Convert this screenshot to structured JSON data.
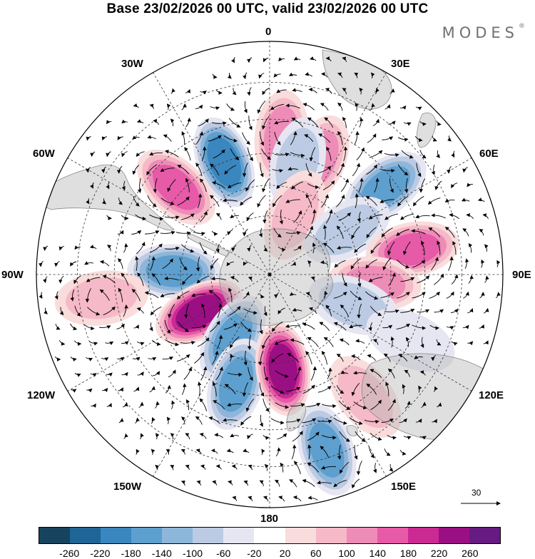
{
  "title": "Base 23/02/2026 00 UTC, valid 23/02/2026 00 UTC",
  "brand": "MODES",
  "brand_mark": "®",
  "longitude_labels": {
    "lon_0": "0",
    "lon_30e": "30E",
    "lon_60e": "60E",
    "lon_90e": "90E",
    "lon_120e": "120E",
    "lon_150e": "150E",
    "lon_180": "180",
    "lon_150w": "150W",
    "lon_120w": "120W",
    "lon_90w": "90W",
    "lon_60w": "60W",
    "lon_30w": "30W"
  },
  "reference_vector": {
    "label": "30"
  },
  "colorbar": {
    "colors": [
      "#17435f",
      "#1f6596",
      "#3a86bf",
      "#5d9fce",
      "#8eb6da",
      "#bccbe3",
      "#e6e6f2",
      "#ffffff",
      "#f9dcdc",
      "#f6b9c7",
      "#ee8cb8",
      "#e65aa8",
      "#cb2a93",
      "#9b0f84",
      "#661b82"
    ],
    "tick_labels": [
      "-260",
      "-220",
      "-180",
      "-140",
      "-100",
      "-60",
      "-20",
      "20",
      "60",
      "100",
      "140",
      "180",
      "220",
      "260"
    ]
  },
  "anomalies": [
    {
      "lon": 23,
      "lat": -49,
      "value": 120
    },
    {
      "lon": 5,
      "lat": -45,
      "value": 130
    },
    {
      "lon": 14,
      "lat": -52,
      "value": -90
    },
    {
      "lon": 23,
      "lat": -68,
      "value": 60
    },
    {
      "lon": -22,
      "lat": -50,
      "value": -200
    },
    {
      "lon": -47,
      "lat": -48,
      "value": 150
    },
    {
      "lon": -88,
      "lat": -58,
      "value": -170
    },
    {
      "lon": -98,
      "lat": -36,
      "value": 60
    },
    {
      "lon": -118,
      "lat": -63,
      "value": 230
    },
    {
      "lon": -150,
      "lat": -65,
      "value": -140
    },
    {
      "lon": -163,
      "lat": -52,
      "value": -170
    },
    {
      "lon": 172,
      "lat": -58,
      "value": 240
    },
    {
      "lon": 162,
      "lat": -32,
      "value": -140
    },
    {
      "lon": 142,
      "lat": -40,
      "value": 70
    },
    {
      "lon": 53,
      "lat": -43,
      "value": -160
    },
    {
      "lon": 60,
      "lat": -60,
      "value": -80
    },
    {
      "lon": 80,
      "lat": -43,
      "value": 150
    },
    {
      "lon": 95,
      "lat": -55,
      "value": 100
    },
    {
      "lon": 110,
      "lat": -60,
      "value": -70
    },
    {
      "lon": 115,
      "lat": -40,
      "value": -30
    }
  ]
}
